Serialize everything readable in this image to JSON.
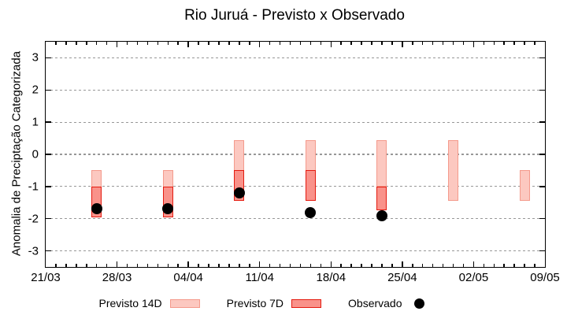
{
  "chart_data": {
    "type": "bar",
    "subtype": "interval-range-bars-with-observed-dots",
    "title": "Rio Juruá - Previsto x Observado",
    "ylabel": "Anomalia de Preciptação Categorizada",
    "xlabel": "",
    "ylim": [
      -3.5,
      3.5
    ],
    "yticks": [
      3,
      2,
      1,
      0,
      -1,
      -2,
      -3
    ],
    "grid": "dotted-horizontal",
    "legend_position": "below",
    "x_axis": {
      "tick_labels": [
        "21/03",
        "28/03",
        "04/04",
        "11/04",
        "18/04",
        "25/04",
        "02/05",
        "09/05"
      ],
      "days_total": 49,
      "major_every_days": 7,
      "minor_every_days": 1
    },
    "series": [
      {
        "name": "Previsto 14D",
        "type": "interval",
        "color_fill": "#fcc8c0",
        "color_border": "#f49a8c",
        "points": [
          {
            "date": "26/03",
            "day": 5,
            "hi": -0.5,
            "lo": -1.95
          },
          {
            "date": "02/04",
            "day": 12,
            "hi": -0.5,
            "lo": -1.95
          },
          {
            "date": "09/04",
            "day": 19,
            "hi": 0.45,
            "lo": -1.45
          },
          {
            "date": "16/04",
            "day": 26,
            "hi": 0.45,
            "lo": -1.45
          },
          {
            "date": "23/04",
            "day": 33,
            "hi": 0.45,
            "lo": -1.0
          },
          {
            "date": "30/04",
            "day": 40,
            "hi": 0.45,
            "lo": -1.45
          },
          {
            "date": "07/05",
            "day": 47,
            "hi": -0.5,
            "lo": -1.45
          }
        ]
      },
      {
        "name": "Previsto 7D",
        "type": "interval",
        "color_fill": "#f9928a",
        "color_border": "#e41b10",
        "points": [
          {
            "date": "26/03",
            "day": 5,
            "hi": -1.0,
            "lo": -1.95
          },
          {
            "date": "02/04",
            "day": 12,
            "hi": -1.0,
            "lo": -1.95
          },
          {
            "date": "09/04",
            "day": 19,
            "hi": -0.5,
            "lo": -1.45
          },
          {
            "date": "16/04",
            "day": 26,
            "hi": -0.5,
            "lo": -1.45
          },
          {
            "date": "23/04",
            "day": 33,
            "hi": -1.0,
            "lo": -1.75
          }
        ]
      },
      {
        "name": "Observado",
        "type": "dot",
        "color": "#000000",
        "points": [
          {
            "date": "26/03",
            "day": 5,
            "value": -1.7
          },
          {
            "date": "02/04",
            "day": 12,
            "value": -1.7
          },
          {
            "date": "09/04",
            "day": 19,
            "value": -1.2
          },
          {
            "date": "16/04",
            "day": 26,
            "value": -1.8
          },
          {
            "date": "23/04",
            "day": 33,
            "value": -1.9
          }
        ]
      }
    ]
  }
}
